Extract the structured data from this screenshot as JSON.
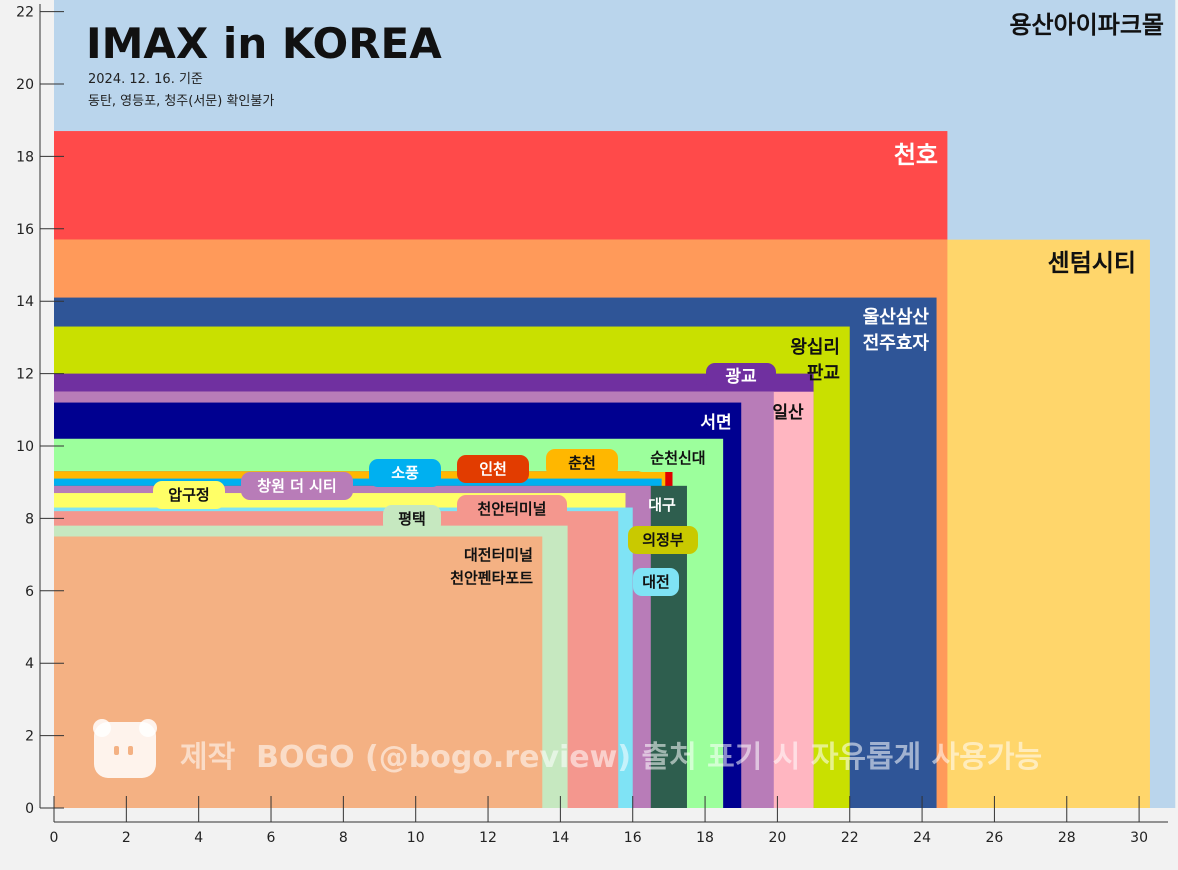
{
  "chart_data": {
    "type": "area",
    "title": "IMAX in KOREA",
    "subtitle_lines": [
      "2024. 12. 16. 기준",
      "동탄, 영등포, 청주(서문) 확인불가"
    ],
    "watermark": "제작  BOGO (@bogo.review) 출처 표기 시 자유롭게 사용가능",
    "xlim": [
      0,
      31
    ],
    "ylim": [
      0,
      22.5
    ],
    "x_ticks": [
      0,
      2,
      4,
      6,
      8,
      10,
      12,
      14,
      16,
      18,
      20,
      22,
      24,
      26,
      28,
      30
    ],
    "y_ticks": [
      0,
      2,
      4,
      6,
      8,
      10,
      12,
      14,
      16,
      18,
      20,
      22
    ],
    "series": [
      {
        "name": "용산아이파크몰",
        "width": 31.0,
        "height": 22.4,
        "color": "#bad5ec"
      },
      {
        "name": "천호",
        "width": 24.7,
        "height": 18.7,
        "color": "#ff4a4a"
      },
      {
        "name": "센텀시티",
        "width": 30.3,
        "height": 15.7,
        "color": "#ffd66b"
      },
      {
        "name": "",
        "width": 24.7,
        "height": 15.7,
        "color": "#ff9a5a"
      },
      {
        "name": "울산삼산 전주효자",
        "width": 24.4,
        "height": 14.1,
        "color": "#2f5597"
      },
      {
        "name": "왕십리 판교",
        "width": 22.0,
        "height": 13.3,
        "color": "#c9e000"
      },
      {
        "name": "광교",
        "width": 21.0,
        "height": 12.0,
        "color": "#7030a0"
      },
      {
        "name": "일산",
        "width": 21.0,
        "height": 11.5,
        "color": "#ffb6c1"
      },
      {
        "name": "",
        "width": 19.9,
        "height": 11.5,
        "color": "#b87cb8"
      },
      {
        "name": "서면",
        "width": 19.0,
        "height": 11.2,
        "color": "#000090"
      },
      {
        "name": "순천신대",
        "width": 18.5,
        "height": 10.2,
        "color": "#9cff9c"
      },
      {
        "name": "인천",
        "width": 17.1,
        "height": 9.3,
        "color": "#e00000"
      },
      {
        "name": "춘천",
        "width": 16.9,
        "height": 9.3,
        "color": "#ffb700"
      },
      {
        "name": "소풍",
        "width": 16.8,
        "height": 9.1,
        "color": "#00b0f0"
      },
      {
        "name": "대구",
        "width": 17.5,
        "height": 8.9,
        "color": "#2e5e4e"
      },
      {
        "name": "창원 더 시티",
        "width": 16.5,
        "height": 8.9,
        "color": "#b87cb8"
      },
      {
        "name": "압구정",
        "width": 15.8,
        "height": 8.7,
        "color": "#ffff66"
      },
      {
        "name": "대전",
        "width": 16.0,
        "height": 8.3,
        "color": "#7fe3f5"
      },
      {
        "name": "천안터미널",
        "width": 15.6,
        "height": 8.2,
        "color": "#f4978e"
      },
      {
        "name": "평택",
        "width": 14.2,
        "height": 7.8,
        "color": "#c6e8c0"
      },
      {
        "name": "대전터미널 천안펜타포트",
        "width": 13.5,
        "height": 7.5,
        "color": "#f4b183"
      },
      {
        "name": "의정부",
        "width": 16.9,
        "height": 0,
        "color": "#c9c900"
      }
    ]
  }
}
